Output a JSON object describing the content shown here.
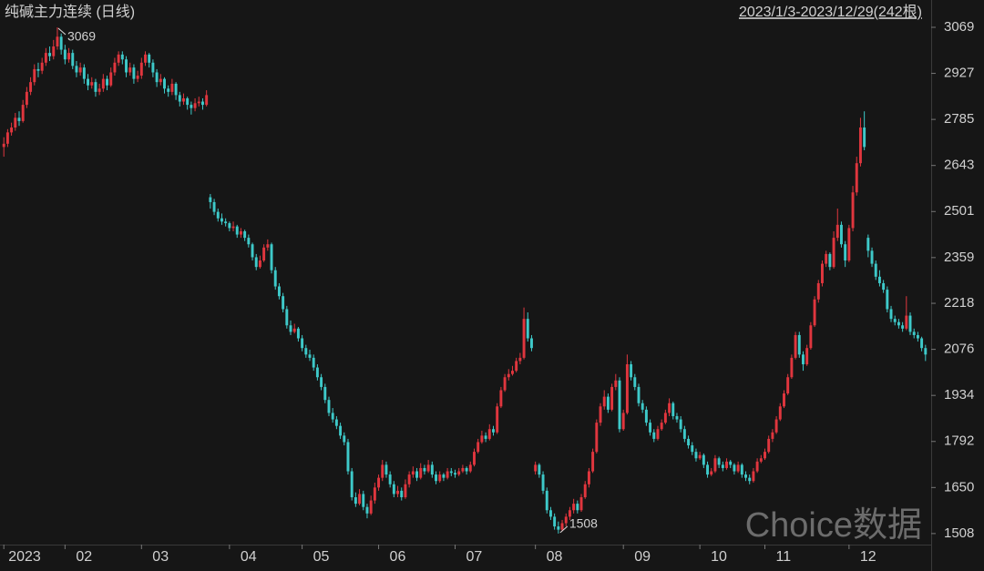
{
  "chart_data": {
    "type": "candlestick",
    "title": "纯碱主力连续 (日线)",
    "subtitle": "2023/1/3-2023/12/29(242根)",
    "watermark": "Choice数据",
    "up_color": "#e0363e",
    "down_color": "#3ec9c9",
    "xlim": [
      -1,
      242
    ],
    "xticks": [
      {
        "value": 0,
        "label": "2023"
      },
      {
        "value": 16,
        "label": "02"
      },
      {
        "value": 36,
        "label": "03"
      },
      {
        "value": 59,
        "label": "04"
      },
      {
        "value": 78,
        "label": "05"
      },
      {
        "value": 98,
        "label": "06"
      },
      {
        "value": 118,
        "label": "07"
      },
      {
        "value": 139,
        "label": "08"
      },
      {
        "value": 162,
        "label": "09"
      },
      {
        "value": 182,
        "label": "10"
      },
      {
        "value": 199,
        "label": "11"
      },
      {
        "value": 221,
        "label": "12"
      }
    ],
    "ylim": [
      1474,
      3083
    ],
    "yticks": [
      3069,
      2927,
      2785,
      2643,
      2501,
      2359,
      2218,
      2076,
      1934,
      1792,
      1650,
      1508
    ],
    "candles": [
      [
        2700,
        2730,
        2670,
        2710
      ],
      [
        2710,
        2755,
        2700,
        2745
      ],
      [
        2745,
        2775,
        2735,
        2760
      ],
      [
        2760,
        2805,
        2750,
        2790
      ],
      [
        2790,
        2810,
        2765,
        2780
      ],
      [
        2780,
        2845,
        2775,
        2830
      ],
      [
        2830,
        2885,
        2820,
        2870
      ],
      [
        2870,
        2915,
        2860,
        2900
      ],
      [
        2900,
        2955,
        2890,
        2940
      ],
      [
        2940,
        2960,
        2915,
        2935
      ],
      [
        2935,
        2975,
        2925,
        2960
      ],
      [
        2960,
        3005,
        2950,
        2990
      ],
      [
        2990,
        3010,
        2965,
        2980
      ],
      [
        2980,
        3030,
        2970,
        3010
      ],
      [
        3010,
        3069,
        3000,
        3040
      ],
      [
        3040,
        3050,
        2985,
        3000
      ],
      [
        3000,
        3015,
        2955,
        2970
      ],
      [
        2970,
        3005,
        2960,
        2990
      ],
      [
        2990,
        3000,
        2940,
        2950
      ],
      [
        2950,
        2965,
        2915,
        2930
      ],
      [
        2930,
        2960,
        2920,
        2945
      ],
      [
        2945,
        2955,
        2895,
        2910
      ],
      [
        2910,
        2925,
        2875,
        2890
      ],
      [
        2890,
        2915,
        2880,
        2900
      ],
      [
        2900,
        2910,
        2855,
        2870
      ],
      [
        2870,
        2895,
        2860,
        2880
      ],
      [
        2880,
        2925,
        2870,
        2910
      ],
      [
        2910,
        2920,
        2875,
        2890
      ],
      [
        2890,
        2945,
        2885,
        2930
      ],
      [
        2930,
        2975,
        2920,
        2960
      ],
      [
        2960,
        2995,
        2950,
        2985
      ],
      [
        2985,
        2995,
        2955,
        2970
      ],
      [
        2970,
        2980,
        2915,
        2930
      ],
      [
        2930,
        2960,
        2920,
        2945
      ],
      [
        2945,
        2955,
        2895,
        2910
      ],
      [
        2910,
        2935,
        2900,
        2920
      ],
      [
        2920,
        2975,
        2910,
        2960
      ],
      [
        2960,
        2995,
        2950,
        2985
      ],
      [
        2985,
        2990,
        2945,
        2960
      ],
      [
        2960,
        2970,
        2915,
        2930
      ],
      [
        2930,
        2940,
        2885,
        2900
      ],
      [
        2900,
        2925,
        2890,
        2910
      ],
      [
        2910,
        2915,
        2865,
        2880
      ],
      [
        2880,
        2890,
        2855,
        2870
      ],
      [
        2870,
        2910,
        2860,
        2895
      ],
      [
        2895,
        2900,
        2845,
        2860
      ],
      [
        2860,
        2870,
        2825,
        2840
      ],
      [
        2840,
        2865,
        2830,
        2850
      ],
      [
        2850,
        2855,
        2815,
        2830
      ],
      [
        2830,
        2840,
        2800,
        2820
      ],
      [
        2820,
        2850,
        2810,
        2835
      ],
      [
        2835,
        2855,
        2825,
        2840
      ],
      [
        2840,
        2850,
        2815,
        2830
      ],
      [
        2830,
        2875,
        2825,
        2860
      ],
      [
        2545,
        2555,
        2510,
        2530
      ],
      [
        2530,
        2540,
        2490,
        2500
      ],
      [
        2500,
        2510,
        2470,
        2480
      ],
      [
        2480,
        2495,
        2460,
        2470
      ],
      [
        2470,
        2480,
        2455,
        2465
      ],
      [
        2465,
        2470,
        2440,
        2450
      ],
      [
        2450,
        2470,
        2440,
        2455
      ],
      [
        2455,
        2460,
        2420,
        2430
      ],
      [
        2430,
        2450,
        2420,
        2440
      ],
      [
        2440,
        2445,
        2410,
        2420
      ],
      [
        2420,
        2430,
        2390,
        2400
      ],
      [
        2400,
        2405,
        2350,
        2360
      ],
      [
        2360,
        2370,
        2320,
        2330
      ],
      [
        2330,
        2365,
        2325,
        2350
      ],
      [
        2350,
        2400,
        2345,
        2390
      ],
      [
        2390,
        2415,
        2380,
        2400
      ],
      [
        2400,
        2405,
        2310,
        2320
      ],
      [
        2320,
        2330,
        2260,
        2270
      ],
      [
        2270,
        2280,
        2230,
        2240
      ],
      [
        2240,
        2250,
        2190,
        2200
      ],
      [
        2200,
        2210,
        2140,
        2150
      ],
      [
        2150,
        2165,
        2120,
        2130
      ],
      [
        2130,
        2155,
        2125,
        2140
      ],
      [
        2140,
        2145,
        2100,
        2110
      ],
      [
        2110,
        2120,
        2070,
        2080
      ],
      [
        2080,
        2090,
        2050,
        2060
      ],
      [
        2060,
        2075,
        2040,
        2050
      ],
      [
        2050,
        2060,
        2010,
        2020
      ],
      [
        2020,
        2030,
        1980,
        1990
      ],
      [
        1990,
        2000,
        1950,
        1960
      ],
      [
        1960,
        1970,
        1910,
        1920
      ],
      [
        1920,
        1930,
        1870,
        1880
      ],
      [
        1880,
        1895,
        1850,
        1860
      ],
      [
        1860,
        1870,
        1830,
        1840
      ],
      [
        1840,
        1850,
        1800,
        1810
      ],
      [
        1810,
        1820,
        1780,
        1790
      ],
      [
        1790,
        1800,
        1690,
        1700
      ],
      [
        1700,
        1710,
        1610,
        1620
      ],
      [
        1620,
        1635,
        1590,
        1600
      ],
      [
        1600,
        1645,
        1595,
        1630
      ],
      [
        1630,
        1640,
        1580,
        1590
      ],
      [
        1590,
        1600,
        1555,
        1570
      ],
      [
        1570,
        1625,
        1565,
        1610
      ],
      [
        1610,
        1665,
        1600,
        1650
      ],
      [
        1650,
        1690,
        1640,
        1680
      ],
      [
        1680,
        1735,
        1670,
        1720
      ],
      [
        1720,
        1730,
        1680,
        1690
      ],
      [
        1690,
        1700,
        1650,
        1660
      ],
      [
        1660,
        1670,
        1620,
        1630
      ],
      [
        1630,
        1655,
        1620,
        1640
      ],
      [
        1640,
        1650,
        1610,
        1620
      ],
      [
        1620,
        1675,
        1615,
        1660
      ],
      [
        1660,
        1700,
        1650,
        1690
      ],
      [
        1690,
        1715,
        1680,
        1700
      ],
      [
        1700,
        1710,
        1670,
        1680
      ],
      [
        1680,
        1725,
        1675,
        1710
      ],
      [
        1710,
        1720,
        1690,
        1700
      ],
      [
        1700,
        1735,
        1695,
        1720
      ],
      [
        1720,
        1730,
        1680,
        1690
      ],
      [
        1690,
        1700,
        1660,
        1670
      ],
      [
        1670,
        1700,
        1665,
        1690
      ],
      [
        1690,
        1695,
        1670,
        1680
      ],
      [
        1680,
        1710,
        1675,
        1700
      ],
      [
        1700,
        1710,
        1685,
        1695
      ],
      [
        1695,
        1705,
        1680,
        1690
      ],
      [
        1690,
        1710,
        1685,
        1700
      ],
      [
        1700,
        1720,
        1695,
        1710
      ],
      [
        1710,
        1715,
        1690,
        1700
      ],
      [
        1700,
        1730,
        1695,
        1720
      ],
      [
        1720,
        1770,
        1715,
        1760
      ],
      [
        1760,
        1800,
        1755,
        1790
      ],
      [
        1790,
        1825,
        1785,
        1810
      ],
      [
        1810,
        1820,
        1790,
        1800
      ],
      [
        1800,
        1845,
        1795,
        1830
      ],
      [
        1830,
        1840,
        1810,
        1820
      ],
      [
        1820,
        1910,
        1815,
        1900
      ],
      [
        1900,
        1960,
        1895,
        1950
      ],
      [
        1950,
        2000,
        1945,
        1990
      ],
      [
        1990,
        2015,
        1980,
        2000
      ],
      [
        2000,
        2025,
        1995,
        2010
      ],
      [
        2010,
        2050,
        2005,
        2040
      ],
      [
        2040,
        2065,
        2030,
        2050
      ],
      [
        2050,
        2205,
        2045,
        2170
      ],
      [
        2170,
        2190,
        2100,
        2110
      ],
      [
        2110,
        2120,
        2070,
        2080
      ],
      [
        1700,
        1730,
        1690,
        1720
      ],
      [
        1720,
        1725,
        1680,
        1690
      ],
      [
        1690,
        1700,
        1630,
        1640
      ],
      [
        1640,
        1650,
        1570,
        1580
      ],
      [
        1580,
        1590,
        1550,
        1560
      ],
      [
        1560,
        1570,
        1520,
        1530
      ],
      [
        1530,
        1545,
        1508,
        1520
      ],
      [
        1520,
        1550,
        1515,
        1540
      ],
      [
        1540,
        1570,
        1530,
        1560
      ],
      [
        1560,
        1590,
        1550,
        1580
      ],
      [
        1580,
        1615,
        1570,
        1600
      ],
      [
        1600,
        1610,
        1570,
        1580
      ],
      [
        1580,
        1630,
        1575,
        1620
      ],
      [
        1620,
        1670,
        1615,
        1660
      ],
      [
        1660,
        1710,
        1650,
        1700
      ],
      [
        1700,
        1770,
        1695,
        1760
      ],
      [
        1760,
        1860,
        1755,
        1850
      ],
      [
        1850,
        1910,
        1840,
        1900
      ],
      [
        1900,
        1950,
        1890,
        1930
      ],
      [
        1930,
        1940,
        1880,
        1890
      ],
      [
        1890,
        1970,
        1885,
        1960
      ],
      [
        1960,
        2000,
        1950,
        1980
      ],
      [
        1980,
        1990,
        1820,
        1830
      ],
      [
        1830,
        1890,
        1825,
        1880
      ],
      [
        1880,
        2060,
        1875,
        2030
      ],
      [
        2030,
        2040,
        1980,
        1990
      ],
      [
        1990,
        2000,
        1950,
        1960
      ],
      [
        1960,
        1970,
        1900,
        1910
      ],
      [
        1910,
        1920,
        1880,
        1890
      ],
      [
        1890,
        1900,
        1840,
        1850
      ],
      [
        1850,
        1860,
        1810,
        1820
      ],
      [
        1820,
        1830,
        1790,
        1800
      ],
      [
        1800,
        1840,
        1795,
        1830
      ],
      [
        1830,
        1860,
        1825,
        1850
      ],
      [
        1850,
        1890,
        1845,
        1880
      ],
      [
        1880,
        1925,
        1870,
        1910
      ],
      [
        1910,
        1915,
        1860,
        1870
      ],
      [
        1870,
        1880,
        1850,
        1860
      ],
      [
        1860,
        1870,
        1820,
        1830
      ],
      [
        1830,
        1840,
        1790,
        1800
      ],
      [
        1800,
        1810,
        1770,
        1780
      ],
      [
        1780,
        1790,
        1750,
        1760
      ],
      [
        1760,
        1770,
        1730,
        1740
      ],
      [
        1740,
        1760,
        1735,
        1750
      ],
      [
        1750,
        1755,
        1710,
        1720
      ],
      [
        1720,
        1730,
        1680,
        1690
      ],
      [
        1690,
        1710,
        1685,
        1700
      ],
      [
        1700,
        1750,
        1695,
        1740
      ],
      [
        1740,
        1745,
        1710,
        1720
      ],
      [
        1720,
        1730,
        1700,
        1710
      ],
      [
        1710,
        1740,
        1705,
        1730
      ],
      [
        1730,
        1735,
        1710,
        1720
      ],
      [
        1720,
        1725,
        1690,
        1700
      ],
      [
        1700,
        1730,
        1695,
        1720
      ],
      [
        1720,
        1725,
        1680,
        1690
      ],
      [
        1690,
        1700,
        1670,
        1680
      ],
      [
        1680,
        1690,
        1660,
        1670
      ],
      [
        1670,
        1710,
        1665,
        1700
      ],
      [
        1700,
        1740,
        1695,
        1730
      ],
      [
        1730,
        1750,
        1725,
        1740
      ],
      [
        1740,
        1770,
        1735,
        1760
      ],
      [
        1760,
        1810,
        1755,
        1800
      ],
      [
        1800,
        1830,
        1790,
        1820
      ],
      [
        1820,
        1870,
        1815,
        1860
      ],
      [
        1860,
        1910,
        1855,
        1900
      ],
      [
        1900,
        1950,
        1895,
        1940
      ],
      [
        1940,
        2000,
        1935,
        1990
      ],
      [
        1990,
        2060,
        1985,
        2050
      ],
      [
        2050,
        2130,
        2045,
        2120
      ],
      [
        2120,
        2130,
        2050,
        2060
      ],
      [
        2060,
        2070,
        2010,
        2030
      ],
      [
        2030,
        2090,
        2025,
        2080
      ],
      [
        2080,
        2160,
        2075,
        2150
      ],
      [
        2150,
        2240,
        2145,
        2230
      ],
      [
        2230,
        2290,
        2220,
        2280
      ],
      [
        2280,
        2350,
        2270,
        2340
      ],
      [
        2340,
        2380,
        2330,
        2370
      ],
      [
        2370,
        2375,
        2320,
        2330
      ],
      [
        2330,
        2440,
        2325,
        2420
      ],
      [
        2420,
        2510,
        2410,
        2460
      ],
      [
        2460,
        2470,
        2390,
        2400
      ],
      [
        2400,
        2410,
        2330,
        2350
      ],
      [
        2350,
        2460,
        2345,
        2450
      ],
      [
        2450,
        2580,
        2440,
        2560
      ],
      [
        2560,
        2670,
        2550,
        2650
      ],
      [
        2650,
        2790,
        2640,
        2760
      ],
      [
        2760,
        2810,
        2690,
        2700
      ],
      [
        2420,
        2430,
        2360,
        2380
      ],
      [
        2380,
        2390,
        2330,
        2340
      ],
      [
        2340,
        2350,
        2290,
        2300
      ],
      [
        2300,
        2320,
        2270,
        2280
      ],
      [
        2280,
        2290,
        2250,
        2260
      ],
      [
        2260,
        2270,
        2190,
        2200
      ],
      [
        2200,
        2210,
        2160,
        2170
      ],
      [
        2170,
        2180,
        2150,
        2160
      ],
      [
        2160,
        2170,
        2140,
        2150
      ],
      [
        2150,
        2160,
        2130,
        2140
      ],
      [
        2140,
        2240,
        2135,
        2180
      ],
      [
        2180,
        2190,
        2120,
        2130
      ],
      [
        2130,
        2140,
        2110,
        2120
      ],
      [
        2120,
        2130,
        2100,
        2110
      ],
      [
        2110,
        2115,
        2070,
        2080
      ],
      [
        2080,
        2090,
        2040,
        2060
      ]
    ]
  }
}
